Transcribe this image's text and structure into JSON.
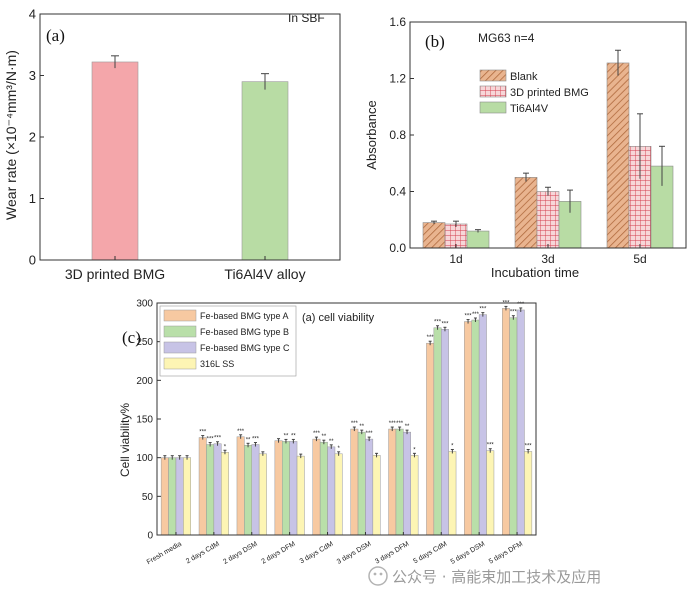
{
  "chart_data": [
    {
      "type": "bar",
      "panel": "(a)",
      "annotation": "In SBF",
      "ylabel": "Wear rate (×10⁻⁴mm³/N·m)",
      "ylim": [
        0,
        4
      ],
      "yticks": [
        "0",
        "1",
        "2",
        "3",
        "4"
      ],
      "categories": [
        "3D printed BMG",
        "Ti6Al4V alloy"
      ],
      "values": [
        3.22,
        2.9
      ],
      "errors": [
        0.1,
        0.13
      ],
      "colors": [
        "#f4a6aa",
        "#b8dca4"
      ]
    },
    {
      "type": "bar",
      "panel": "(b)",
      "annotation": "MG63  n=4",
      "xlabel": "Incubation time",
      "ylabel": "Absorbance",
      "ylim": [
        0,
        1.6
      ],
      "yticks": [
        "0.0",
        "0.4",
        "0.8",
        "1.2",
        "1.6"
      ],
      "categories": [
        "1d",
        "3d",
        "5d"
      ],
      "series": [
        {
          "name": "Blank",
          "values": [
            0.18,
            0.5,
            1.31
          ],
          "errors": [
            0.01,
            0.03,
            0.09
          ],
          "color": "#d98f63"
        },
        {
          "name": "3D printed BMG",
          "values": [
            0.17,
            0.4,
            0.72
          ],
          "errors": [
            0.02,
            0.03,
            0.23
          ],
          "color": "#e8a0a6"
        },
        {
          "name": "Ti6Al4V",
          "values": [
            0.12,
            0.33,
            0.58
          ],
          "errors": [
            0.01,
            0.08,
            0.14
          ],
          "color": "#b8dca4"
        }
      ]
    },
    {
      "type": "bar",
      "panel": "(c)",
      "title": "(a) cell viability",
      "ylabel": "Cell viability%",
      "ylim": [
        0,
        300
      ],
      "yticks": [
        "0",
        "50",
        "100",
        "150",
        "200",
        "250",
        "300"
      ],
      "categories": [
        "Fresh media",
        "2 days CdM",
        "2 days DSM",
        "2 days DFM",
        "3 days CdM",
        "3 days DSM",
        "3 days DFM",
        "5 days CdM",
        "5 days DSM",
        "5 days DFM"
      ],
      "series": [
        {
          "name": "Fe-based BMG type A",
          "color": "#f7c9a1",
          "values": [
            100,
            126,
            127,
            122,
            124,
            137,
            137,
            248,
            276,
            293
          ]
        },
        {
          "name": "Fe-based BMG type B",
          "color": "#b9dfa9",
          "values": [
            100,
            117,
            116,
            121,
            120,
            133,
            137,
            268,
            278,
            281
          ]
        },
        {
          "name": "Fe-based BMG type C",
          "color": "#c7c3e6",
          "values": [
            100,
            118,
            117,
            121,
            114,
            124,
            133,
            266,
            285,
            291
          ]
        },
        {
          "name": "316L SS",
          "color": "#fdf5b4",
          "values": [
            100,
            107,
            105,
            102,
            105,
            103,
            103,
            108,
            109,
            108
          ]
        }
      ],
      "sig_marks": [
        [
          "",
          "***",
          "***",
          "",
          "***",
          "***",
          "***",
          "***",
          "***",
          "***"
        ],
        [
          "",
          "***",
          "**",
          "**",
          "**",
          "**",
          "***",
          "***",
          "***",
          "***"
        ],
        [
          "",
          "***",
          "***",
          "**",
          "**",
          "***",
          "**",
          "***",
          "***",
          "***"
        ],
        [
          "",
          "*",
          "",
          "",
          "*",
          "",
          "*",
          "*",
          "***",
          "***"
        ]
      ]
    }
  ],
  "watermark": "公众号 · 高能束加工技术及应用"
}
